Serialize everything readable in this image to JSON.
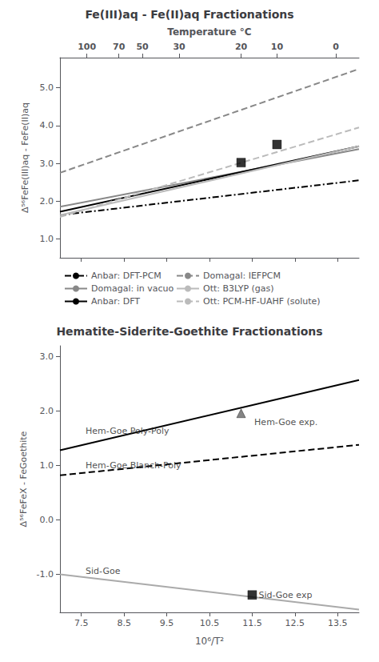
{
  "chart_data": [
    {
      "type": "line",
      "title": "Fe(III)aq - Fe(II)aq Fractionations",
      "ylabel": "Δ⁵⁶FeFe(III)aq - FeFe(II)aq",
      "x2label": "Temperature °C",
      "xlim": [
        7.0,
        14.0
      ],
      "xticks": [
        7.5,
        8.5,
        9.5,
        10.5,
        11.5,
        12.5,
        13.5
      ],
      "ylim": [
        0.5,
        5.8
      ],
      "yticks": [
        {
          "value": 1.0,
          "label": "1.0"
        },
        {
          "value": 2.0,
          "label": "2.0"
        },
        {
          "value": 3.0,
          "label": "3.0"
        },
        {
          "value": 4.0,
          "label": "4.0"
        },
        {
          "value": 5.0,
          "label": "5.0"
        }
      ],
      "x2lim": [
        7.0,
        14.0
      ],
      "x2ticks": [
        {
          "value": 7.63,
          "label": "100"
        },
        {
          "value": 8.38,
          "label": "70"
        },
        {
          "value": 8.93,
          "label": "50"
        },
        {
          "value": 9.79,
          "label": "30"
        },
        {
          "value": 11.24,
          "label": "20"
        },
        {
          "value": 12.08,
          "label": "10"
        },
        {
          "value": 13.46,
          "label": "0"
        }
      ],
      "tick_labels": "y",
      "grid": false,
      "legend": "bottom",
      "series": [
        {
          "name": "Anbar: DFT-PCM",
          "type": "line",
          "color": "#000000",
          "line_style": "dashdot",
          "x": [
            7.0,
            14.0
          ],
          "values": [
            1.63,
            2.55
          ]
        },
        {
          "name": "Domagal: in vacuo",
          "type": "line",
          "color": "#888888",
          "line_style": "solid",
          "x": [
            7.0,
            14.0
          ],
          "values": [
            1.85,
            3.38
          ]
        },
        {
          "name": "Anbar: DFT",
          "type": "line",
          "color": "#000000",
          "line_style": "solid",
          "x": [
            7.0,
            14.0
          ],
          "values": [
            1.72,
            3.45
          ]
        },
        {
          "name": "Domagal: IEFPCM",
          "type": "line",
          "color": "#888888",
          "line_style": "dashed",
          "x": [
            7.0,
            14.0
          ],
          "values": [
            2.75,
            5.5
          ]
        },
        {
          "name": "Ott: B3LYP (gas)",
          "type": "line",
          "color": "#bbbbbb",
          "line_style": "solid",
          "x": [
            7.0,
            14.0
          ],
          "values": [
            1.63,
            3.45
          ]
        },
        {
          "name": "Ott: PCM-HF-UAHF (solute)",
          "type": "line",
          "color": "#bbbbbb",
          "line_style": "dashed",
          "x": [
            7.0,
            14.0
          ],
          "values": [
            1.58,
            3.95
          ]
        },
        {
          "type": "scatter",
          "marker": "square",
          "color": "#000000",
          "x": [
            11.24,
            12.08
          ],
          "values": [
            3.02,
            3.5
          ]
        }
      ]
    },
    {
      "type": "line",
      "title": "Hematite-Siderite-Goethite Fractionations",
      "xlabel": "10⁶/T²",
      "ylabel": "Δ⁵⁶FeFeX - FeGoethite",
      "xlim": [
        7.0,
        14.0
      ],
      "xticks": [
        7.5,
        8.5,
        9.5,
        10.5,
        11.5,
        12.5,
        13.5
      ],
      "ylim": [
        -1.7,
        3.2
      ],
      "yticks": [
        {
          "value": -1.0,
          "label": "-1.0"
        },
        {
          "value": 0.0,
          "label": "0.0"
        },
        {
          "value": 1.0,
          "label": "1.0"
        },
        {
          "value": 2.0,
          "label": "2.0"
        },
        {
          "value": 3.0,
          "label": "3.0"
        }
      ],
      "grid": false,
      "series": [
        {
          "type": "line",
          "color": "#aaaaaa",
          "line_style": "solid",
          "x": [
            7.0,
            14.0
          ],
          "values": [
            -1.0,
            -1.65
          ]
        },
        {
          "type": "line",
          "color": "#000000",
          "line_style": "dashed",
          "x": [
            7.0,
            14.0
          ],
          "values": [
            0.82,
            1.38
          ]
        },
        {
          "type": "line",
          "color": "#000000",
          "line_style": "solid",
          "x": [
            7.0,
            14.0
          ],
          "values": [
            1.28,
            2.57
          ]
        },
        {
          "type": "scatter",
          "marker": "triangle",
          "color": "#666666",
          "x": [
            11.24
          ],
          "values": [
            1.96
          ]
        },
        {
          "type": "scatter",
          "marker": "square",
          "color": "#000000",
          "x": [
            11.5
          ],
          "values": [
            -1.38
          ]
        }
      ],
      "line_annotations": [
        {
          "x": 7.6,
          "y": 1.55,
          "text": "Hem-Goe Poly-Poly"
        },
        {
          "x": 7.6,
          "y": 0.92,
          "text": "Hem-Goe Blanch-Poly"
        },
        {
          "x": 7.6,
          "y": -1.02,
          "text": "Sid-Goe"
        }
      ],
      "point_annotations": [
        {
          "x": 11.55,
          "y": 1.88,
          "text": "Hem-Goe exp."
        },
        {
          "x": 11.65,
          "y": -1.3,
          "text": "Sid-Goe exp"
        }
      ]
    }
  ]
}
